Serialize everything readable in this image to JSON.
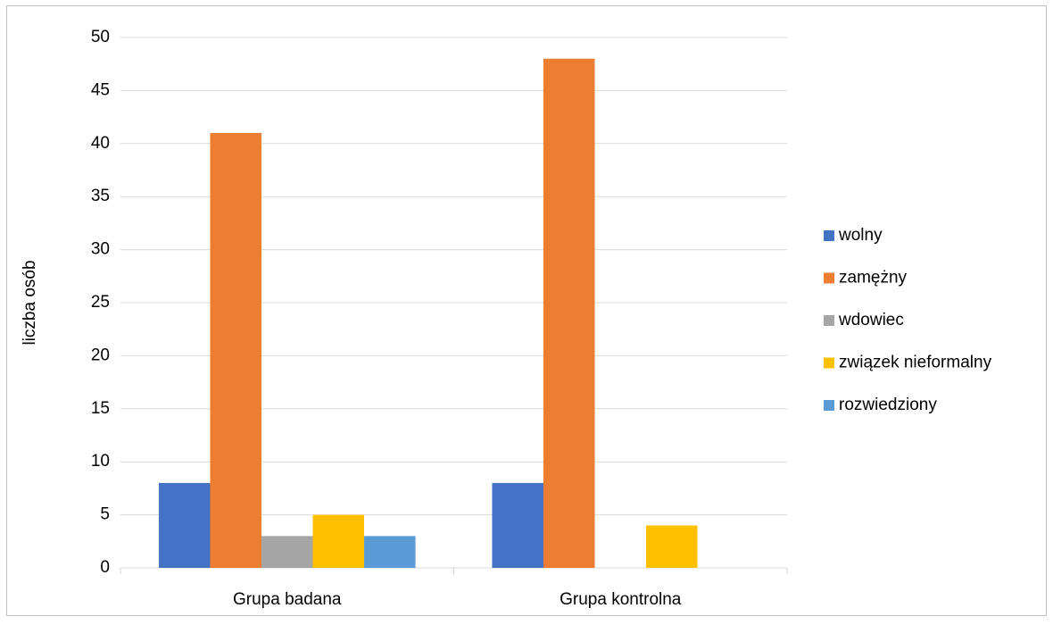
{
  "chart_data": {
    "type": "bar",
    "y_label": "liczba osób",
    "categories": [
      "Grupa badana",
      "Grupa kontrolna"
    ],
    "series": [
      {
        "name": "wolny",
        "color": "#4472c4",
        "values": [
          8,
          8
        ]
      },
      {
        "name": "zamężny",
        "color": "#ed7d31",
        "values": [
          41,
          48
        ]
      },
      {
        "name": "wdowiec",
        "color": "#a5a5a5",
        "values": [
          3,
          0
        ]
      },
      {
        "name": "związek nieformalny",
        "color": "#ffc000",
        "values": [
          5,
          4
        ]
      },
      {
        "name": "rozwiedziony",
        "color": "#5b9bd5",
        "values": [
          3,
          0
        ]
      }
    ],
    "ylim": [
      0,
      50
    ],
    "yticks": [
      0,
      5,
      10,
      15,
      20,
      25,
      30,
      35,
      40,
      45,
      50
    ],
    "grid": true,
    "legend": "right"
  }
}
